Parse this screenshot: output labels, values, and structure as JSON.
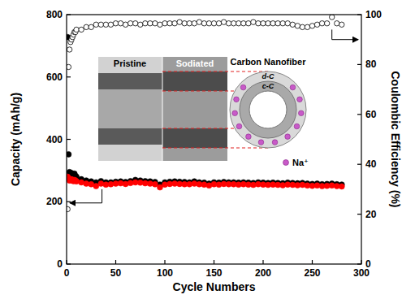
{
  "chart_data": {
    "type": "scatter",
    "x_label": "Cycle Numbers",
    "y_label": "Capacity (mAh/g)",
    "y2_label": "Coulombic Efficiency (%)",
    "x": [
      1,
      2,
      3,
      4,
      5,
      6,
      7,
      8,
      9,
      10,
      15,
      20,
      25,
      30,
      35,
      40,
      45,
      50,
      55,
      60,
      65,
      70,
      75,
      80,
      85,
      90,
      95,
      100,
      105,
      110,
      115,
      120,
      125,
      130,
      135,
      140,
      145,
      150,
      155,
      160,
      165,
      170,
      175,
      180,
      185,
      190,
      195,
      200,
      205,
      210,
      215,
      220,
      225,
      230,
      235,
      240,
      245,
      250,
      255,
      260,
      265,
      270,
      275,
      280
    ],
    "series": [
      {
        "color": "#000000",
        "marker": "circle",
        "values": [
          728,
          352,
          295,
          290,
          292,
          288,
          285,
          290,
          283,
          280,
          272,
          268,
          265,
          262,
          266,
          262,
          262,
          264,
          265,
          263,
          266,
          270,
          268,
          266,
          265,
          263,
          255,
          262,
          264,
          265,
          264,
          263,
          262,
          265,
          262,
          261,
          258,
          262,
          261,
          263,
          262,
          262,
          261,
          262,
          261,
          260,
          262,
          261,
          260,
          261,
          260,
          259,
          261,
          260,
          259,
          260,
          258,
          257,
          258,
          256,
          257,
          258,
          256,
          255
        ]
      },
      {
        "color": "#ff0000",
        "marker": "circle",
        "values": [
          280,
          275,
          268,
          270,
          272,
          268,
          266,
          270,
          268,
          265,
          262,
          258,
          256,
          250,
          258,
          255,
          256,
          258,
          259,
          257,
          260,
          262,
          261,
          259,
          258,
          256,
          246,
          255,
          257,
          258,
          257,
          256,
          256,
          258,
          256,
          255,
          252,
          256,
          255,
          257,
          256,
          256,
          255,
          256,
          255,
          254,
          256,
          255,
          254,
          255,
          254,
          253,
          255,
          254,
          253,
          254,
          252,
          251,
          252,
          250,
          251,
          252,
          250,
          249
        ]
      },
      {
        "color": "#000000",
        "marker": "open_circle",
        "axis": "y2",
        "values": [
          22,
          79,
          86,
          89,
          90,
          91,
          92,
          93,
          93,
          94,
          94,
          95,
          95,
          96,
          96,
          96,
          96,
          96.5,
          96.5,
          96,
          96.5,
          96.5,
          96,
          96.5,
          96.5,
          96.5,
          96,
          96.5,
          96.5,
          96.5,
          97,
          96.5,
          96.5,
          96.5,
          97,
          96.5,
          96.5,
          96.5,
          96.5,
          97,
          96.5,
          96.5,
          96.5,
          96.5,
          96.5,
          97,
          96.5,
          96.5,
          96.5,
          96.5,
          96.5,
          96.5,
          96.5,
          96,
          95.5,
          95,
          95,
          95.5,
          96,
          96.5,
          96.5,
          99,
          96.5,
          96
        ]
      }
    ],
    "xlim": [
      0,
      300
    ],
    "xticks": [
      0,
      50,
      100,
      150,
      200,
      250,
      300
    ],
    "ylim": [
      0,
      800
    ],
    "yticks": [
      0,
      200,
      400,
      600,
      800
    ],
    "y2lim": [
      0,
      100
    ],
    "y2ticks": [
      0,
      20,
      40,
      60,
      80,
      100
    ],
    "grid": false,
    "annotations": {
      "panels": [
        "Pristine",
        "Sodiated"
      ],
      "schematic_title": "Carbon Nanofiber",
      "layers": [
        "d-C",
        "c-C"
      ],
      "ion": "Na⁺"
    }
  }
}
